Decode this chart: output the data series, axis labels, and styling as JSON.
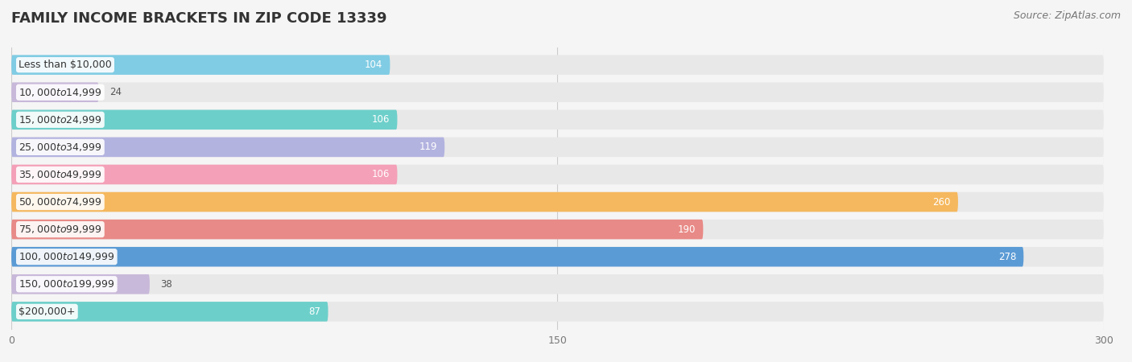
{
  "title": "FAMILY INCOME BRACKETS IN ZIP CODE 13339",
  "source": "Source: ZipAtlas.com",
  "categories": [
    "Less than $10,000",
    "$10,000 to $14,999",
    "$15,000 to $24,999",
    "$25,000 to $34,999",
    "$35,000 to $49,999",
    "$50,000 to $74,999",
    "$75,000 to $99,999",
    "$100,000 to $149,999",
    "$150,000 to $199,999",
    "$200,000+"
  ],
  "values": [
    104,
    24,
    106,
    119,
    106,
    260,
    190,
    278,
    38,
    87
  ],
  "bar_colors": [
    "#80cce4",
    "#c8b8d9",
    "#6dcfca",
    "#b3b3e0",
    "#f4a0b8",
    "#f5b85e",
    "#e88a87",
    "#5b9bd5",
    "#c8b8d9",
    "#6dcfca"
  ],
  "xlim_max": 300,
  "xticks": [
    0,
    150,
    300
  ],
  "background_color": "#f5f5f5",
  "bar_bg_color": "#e8e8e8",
  "title_fontsize": 13,
  "label_fontsize": 9,
  "value_fontsize": 8.5,
  "source_fontsize": 9,
  "bar_height": 0.72,
  "value_inside_threshold": 40,
  "value_inside_color": "white",
  "value_outside_color": "#555555"
}
